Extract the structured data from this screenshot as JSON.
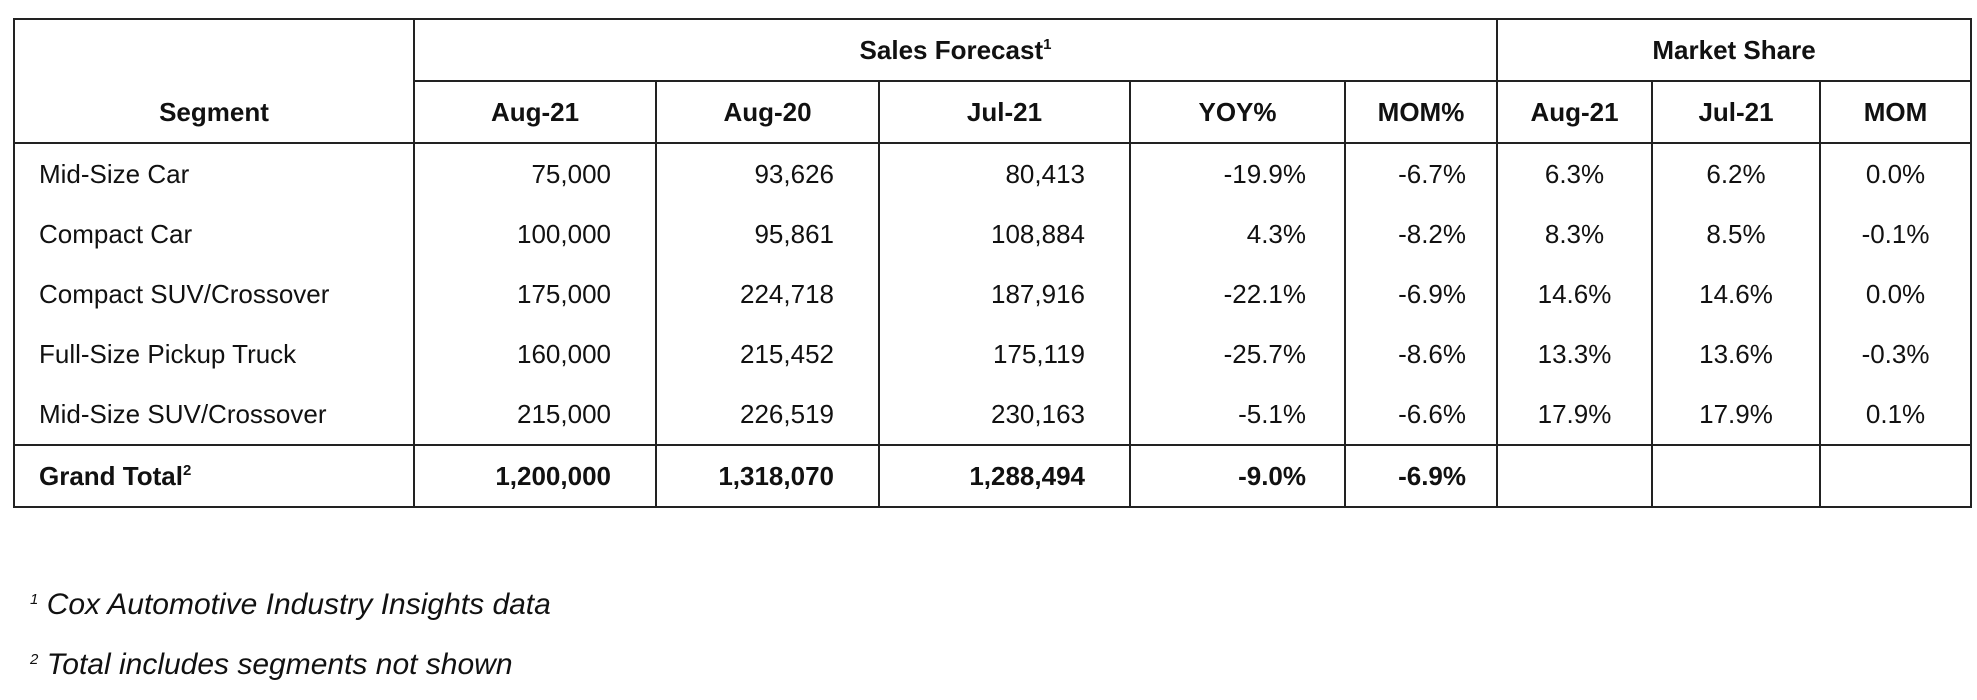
{
  "table": {
    "group_headers": [
      {
        "label": "Sales Forecast",
        "note": "1"
      },
      {
        "label": "Market Share"
      }
    ],
    "columns": [
      "Segment",
      "Aug-21",
      "Aug-20",
      "Jul-21",
      "YOY%",
      "MOM%",
      "Aug-21",
      "Jul-21",
      "MOM"
    ],
    "rows": [
      [
        "Mid-Size Car",
        "75,000",
        "93,626",
        "80,413",
        "-19.9%",
        "-6.7%",
        "6.3%",
        "6.2%",
        "0.0%"
      ],
      [
        "Compact Car",
        "100,000",
        "95,861",
        "108,884",
        "4.3%",
        "-8.2%",
        "8.3%",
        "8.5%",
        "-0.1%"
      ],
      [
        "Compact SUV/Crossover",
        "175,000",
        "224,718",
        "187,916",
        "-22.1%",
        "-6.9%",
        "14.6%",
        "14.6%",
        "0.0%"
      ],
      [
        "Full-Size Pickup Truck",
        "160,000",
        "215,452",
        "175,119",
        "-25.7%",
        "-8.6%",
        "13.3%",
        "13.6%",
        "-0.3%"
      ],
      [
        "Mid-Size SUV/Crossover",
        "215,000",
        "226,519",
        "230,163",
        "-5.1%",
        "-6.6%",
        "17.9%",
        "17.9%",
        "0.1%"
      ]
    ],
    "total": {
      "label": "Grand Total",
      "note": "2",
      "cells": [
        "1,200,000",
        "1,318,070",
        "1,288,494",
        "-9.0%",
        "-6.9%"
      ]
    }
  },
  "footnotes": [
    {
      "mark": "1",
      "text": "Cox Automotive Industry Insights data"
    },
    {
      "mark": "2",
      "text": "Total includes segments not shown"
    }
  ]
}
